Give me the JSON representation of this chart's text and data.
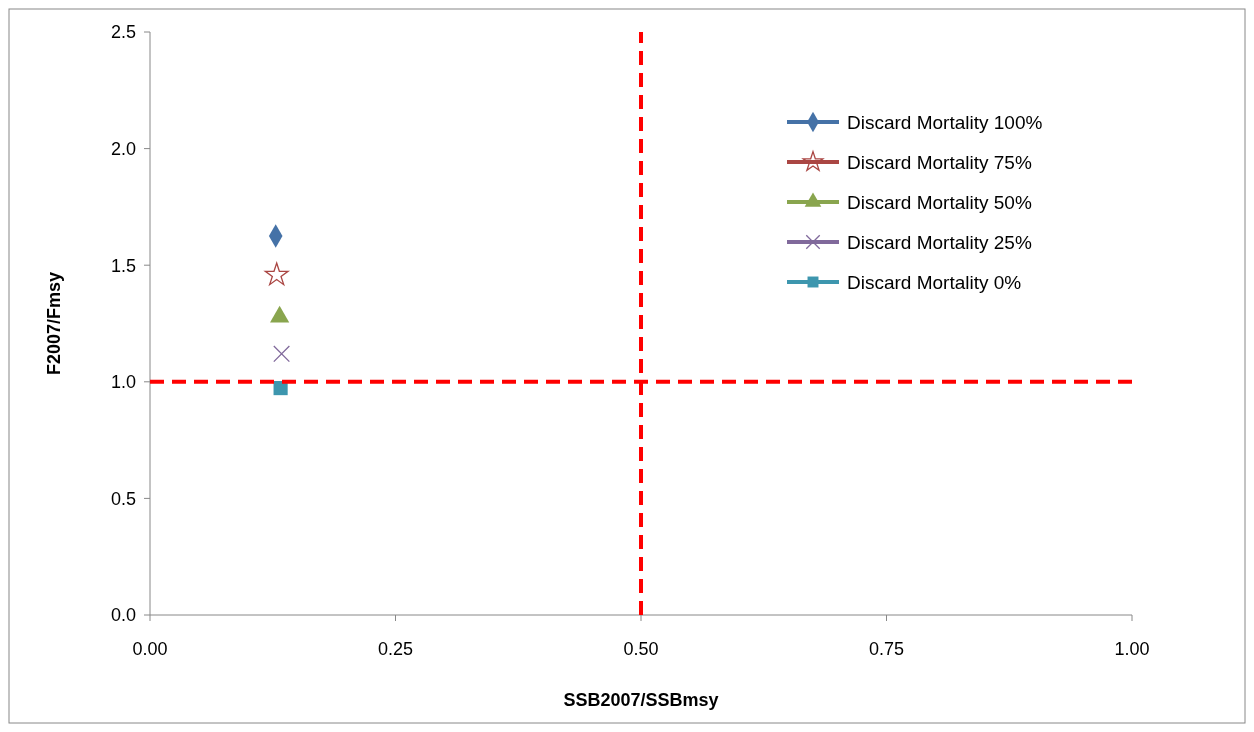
{
  "chart_data": {
    "type": "scatter",
    "xlabel": "SSB2007/SSBmsy",
    "ylabel": "F2007/Fmsy",
    "xlim": [
      0,
      1
    ],
    "xticks": [
      {
        "value": 0,
        "label": "0.00"
      },
      {
        "value": 0.25,
        "label": "0.25"
      },
      {
        "value": 0.5,
        "label": "0.50"
      },
      {
        "value": 0.75,
        "label": "0.75"
      },
      {
        "value": 1,
        "label": "1.00"
      }
    ],
    "ylim": [
      0,
      2.5
    ],
    "yticks": [
      {
        "value": 0,
        "label": "0.0"
      },
      {
        "value": 0.5,
        "label": "0.5"
      },
      {
        "value": 1,
        "label": "1.0"
      },
      {
        "value": 1.5,
        "label": "1.5"
      },
      {
        "value": 2,
        "label": "2.0"
      },
      {
        "value": 2.5,
        "label": "2.5"
      }
    ],
    "grid": false,
    "legend": "top right",
    "series": [
      {
        "name": "Discard Mortality 100%",
        "color": "#4572a7",
        "marker": "diamond",
        "x": [
          0.128
        ],
        "values": [
          1.625
        ]
      },
      {
        "name": "Discard Mortality 75%",
        "color": "#aa4643",
        "marker": "star",
        "x": [
          0.129
        ],
        "values": [
          1.458
        ]
      },
      {
        "name": "Discard Mortality 50%",
        "color": "#89a54e",
        "marker": "triangle",
        "x": [
          0.132
        ],
        "values": [
          1.278
        ]
      },
      {
        "name": "Discard Mortality 25%",
        "color": "#80699b",
        "marker": "cross",
        "x": [
          0.134
        ],
        "values": [
          1.12
        ]
      },
      {
        "name": "Discard Mortality 0%",
        "color": "#3d96ae",
        "marker": "square",
        "x": [
          0.133
        ],
        "values": [
          0.973
        ]
      }
    ],
    "ref_lines": [
      {
        "axis": "x",
        "value": 0.5,
        "color": "#ff0000",
        "line_style": "dashed"
      },
      {
        "axis": "y",
        "value": 1,
        "color": "#ff0000",
        "line_style": "dashed"
      }
    ]
  }
}
